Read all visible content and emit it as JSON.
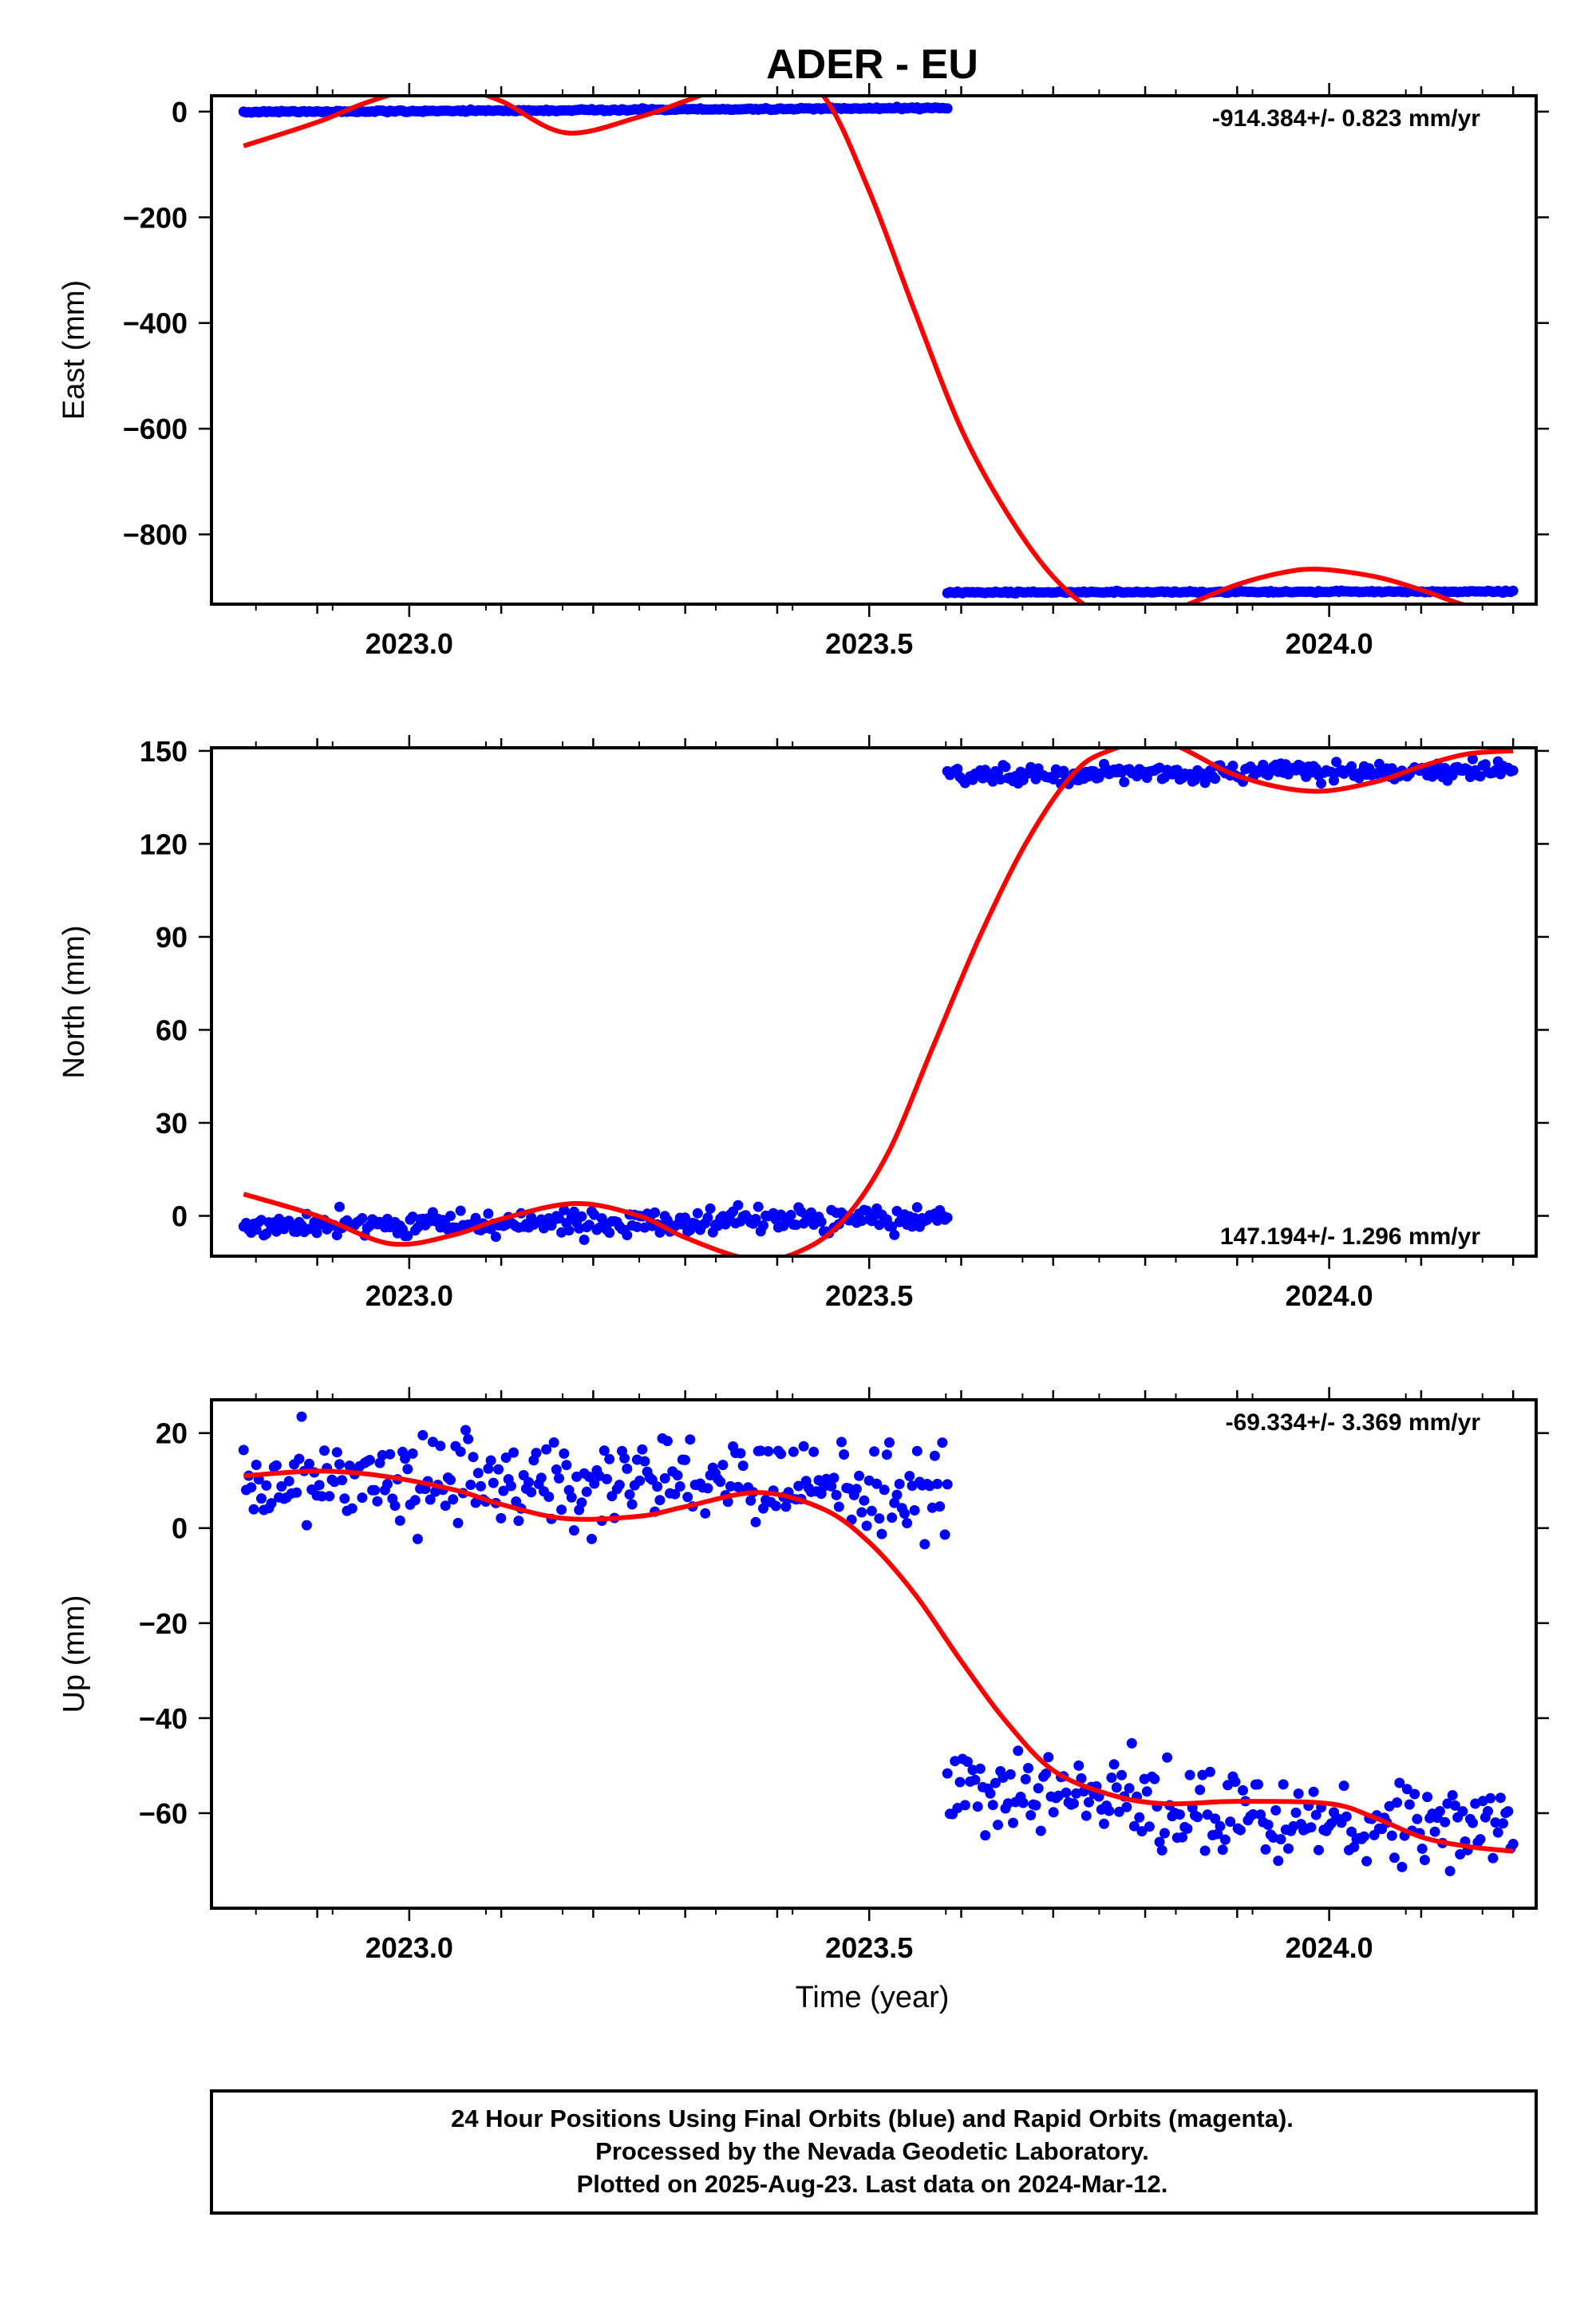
{
  "figure": {
    "title": "ADER - EU",
    "x_axis_label": "Time (year)",
    "caption": [
      "24 Hour Positions Using Final Orbits (blue) and Rapid Orbits (magenta).",
      "Processed by the Nevada Geodetic Laboratory.",
      "Plotted on 2025-Aug-23. Last data on 2024-Mar-12."
    ],
    "colors": {
      "data": "#0000ff",
      "model": "#ff0000",
      "axes": "#000000"
    }
  },
  "chart_data": [
    {
      "type": "scatter",
      "component": "east",
      "ylabel": "East (mm)",
      "rate_label": "-914.384+/- 0.823 mm/yr",
      "rate_position": "top-right",
      "xlim": [
        2022.785,
        2024.225
      ],
      "ylim": [
        -932,
        30
      ],
      "xticks": [
        2023.0,
        2023.5,
        2024.0
      ],
      "xtick_labels": [
        "2023.0",
        "2023.5",
        "2024.0"
      ],
      "yticks": [
        0,
        -200,
        -400,
        -600,
        -800
      ],
      "ytick_labels": [
        "0",
        "−200",
        "−400",
        "−600",
        "−800"
      ],
      "series": [
        {
          "kind": "points",
          "segments": [
            {
              "x_range": [
                2022.82,
                2023.585
              ],
              "y_start": -1,
              "y_end": 7,
              "scatter": 1.5
            },
            {
              "x_range": [
                2023.585,
                2024.2
              ],
              "y_start": -910,
              "y_end": -908,
              "scatter": 1.5
            }
          ]
        },
        {
          "kind": "model",
          "x": [
            2022.82,
            2022.9,
            2022.95,
            2023.0,
            2023.05,
            2023.1,
            2023.17,
            2023.25,
            2023.3,
            2023.35,
            2023.4,
            2023.45,
            2023.5,
            2023.55,
            2023.6,
            2023.65,
            2023.7,
            2023.75,
            2023.8,
            2023.85,
            2023.9,
            2023.95,
            2023.99,
            2024.05,
            2024.1,
            2024.15,
            2024.2
          ],
          "y": [
            -65,
            -20,
            15,
            40,
            45,
            20,
            -40,
            -10,
            20,
            50,
            60,
            30,
            -150,
            -380,
            -600,
            -760,
            -880,
            -950,
            -965,
            -930,
            -895,
            -872,
            -866,
            -880,
            -905,
            -935,
            -950
          ]
        }
      ]
    },
    {
      "type": "scatter",
      "component": "north",
      "ylabel": "North (mm)",
      "rate_label": "147.194+/- 1.296 mm/yr",
      "rate_position": "bottom-right",
      "xlim": [
        2022.785,
        2024.225
      ],
      "ylim": [
        -13,
        151
      ],
      "xticks": [
        2023.0,
        2023.5,
        2024.0
      ],
      "xtick_labels": [
        "2023.0",
        "2023.5",
        "2024.0"
      ],
      "yticks": [
        150,
        120,
        90,
        60,
        30,
        0
      ],
      "ytick_labels": [
        "150",
        "120",
        "90",
        "60",
        "30",
        "0"
      ],
      "series": [
        {
          "kind": "points",
          "segments": [
            {
              "x_range": [
                2022.82,
                2023.585
              ],
              "y_start": -3,
              "y_end": -1,
              "scatter": 3
            },
            {
              "x_range": [
                2023.585,
                2024.2
              ],
              "y_start": 142,
              "y_end": 144,
              "scatter": 2.5
            }
          ]
        },
        {
          "kind": "model",
          "x": [
            2022.82,
            2022.9,
            2022.98,
            2023.05,
            2023.1,
            2023.18,
            2023.25,
            2023.3,
            2023.37,
            2023.42,
            2023.47,
            2023.52,
            2023.57,
            2023.62,
            2023.67,
            2023.72,
            2023.76,
            2023.82,
            2023.9,
            2023.98,
            2024.05,
            2024.1,
            2024.15,
            2024.2
          ],
          "y": [
            7,
            0,
            -9,
            -6,
            -1,
            4,
            0,
            -7,
            -14,
            -12,
            -2,
            20,
            55,
            90,
            120,
            142,
            150,
            153,
            142,
            137,
            140,
            145,
            149,
            150
          ]
        }
      ]
    },
    {
      "type": "scatter",
      "component": "up",
      "ylabel": "Up (mm)",
      "rate_label": "-69.334+/- 3.369 mm/yr",
      "rate_position": "top-right",
      "xlim": [
        2022.785,
        2024.225
      ],
      "ylim": [
        -80,
        27
      ],
      "xticks": [
        2023.0,
        2023.5,
        2024.0
      ],
      "xtick_labels": [
        "2023.0",
        "2023.5",
        "2024.0"
      ],
      "yticks": [
        20,
        0,
        -20,
        -40,
        -60
      ],
      "ytick_labels": [
        "20",
        "0",
        "−20",
        "−40",
        "−60"
      ],
      "series": [
        {
          "kind": "points",
          "segments": [
            {
              "x_range": [
                2022.82,
                2023.585
              ],
              "y_start": 10,
              "y_end": 9,
              "scatter": 8
            },
            {
              "x_range": [
                2023.585,
                2024.2
              ],
              "y_start": -55,
              "y_end": -64,
              "scatter": 8
            }
          ]
        },
        {
          "kind": "model",
          "x": [
            2022.82,
            2022.9,
            2022.97,
            2023.05,
            2023.1,
            2023.17,
            2023.25,
            2023.3,
            2023.38,
            2023.45,
            2023.5,
            2023.55,
            2023.6,
            2023.65,
            2023.7,
            2023.76,
            2023.82,
            2023.9,
            2024.0,
            2024.05,
            2024.1,
            2024.15,
            2024.2
          ],
          "y": [
            11,
            12,
            11,
            8,
            5,
            2,
            2.5,
            4.5,
            7.5,
            4,
            -3,
            -14,
            -28,
            -41,
            -51,
            -56,
            -58,
            -57.5,
            -58,
            -61,
            -65,
            -67,
            -68
          ]
        }
      ]
    }
  ]
}
